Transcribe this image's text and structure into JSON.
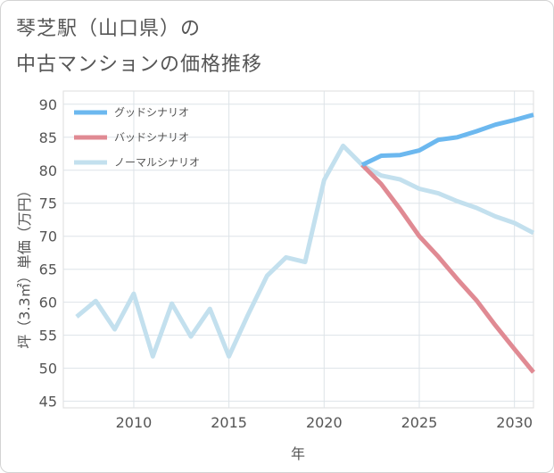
{
  "title_line1": "琴芝駅（山口県）の",
  "title_line2": "中古マンションの価格推移",
  "chart_data": {
    "type": "line",
    "xlabel": "年",
    "ylabel": "坪（3.3㎡）単価（万円）",
    "xlim": [
      2006.3,
      2031
    ],
    "ylim": [
      44,
      92
    ],
    "x_ticks": [
      2010,
      2015,
      2020,
      2025,
      2030
    ],
    "y_ticks": [
      45,
      50,
      55,
      60,
      65,
      70,
      75,
      80,
      85,
      90
    ],
    "grid": true,
    "legend_position": "top-left",
    "series": [
      {
        "name": "グッドシナリオ",
        "color": "#6cb8ef",
        "x": [
          2022,
          2023,
          2024,
          2025,
          2026,
          2027,
          2028,
          2029,
          2030,
          2031
        ],
        "y": [
          80.8,
          82.2,
          82.3,
          83.0,
          84.6,
          85.0,
          85.9,
          86.9,
          87.6,
          88.4
        ]
      },
      {
        "name": "バッドシナリオ",
        "color": "#e08a93",
        "x": [
          2022,
          2023,
          2024,
          2025,
          2026,
          2027,
          2028,
          2029,
          2030,
          2031
        ],
        "y": [
          80.8,
          77.9,
          74.1,
          70.0,
          66.9,
          63.5,
          60.3,
          56.5,
          52.9,
          49.4
        ]
      },
      {
        "name": "ノーマルシナリオ",
        "color": "#c3e0ee",
        "x": [
          2007,
          2008,
          2009,
          2010,
          2011,
          2012,
          2013,
          2014,
          2015,
          2016,
          2017,
          2018,
          2019,
          2020,
          2021,
          2022,
          2023,
          2024,
          2025,
          2026,
          2027,
          2028,
          2029,
          2030,
          2031
        ],
        "y": [
          57.8,
          60.2,
          55.9,
          61.3,
          51.8,
          59.8,
          54.8,
          59.0,
          51.8,
          58.1,
          64.0,
          66.8,
          66.1,
          78.5,
          83.7,
          80.8,
          79.2,
          78.6,
          77.2,
          76.5,
          75.3,
          74.3,
          73.0,
          72.0,
          70.5
        ]
      }
    ]
  }
}
